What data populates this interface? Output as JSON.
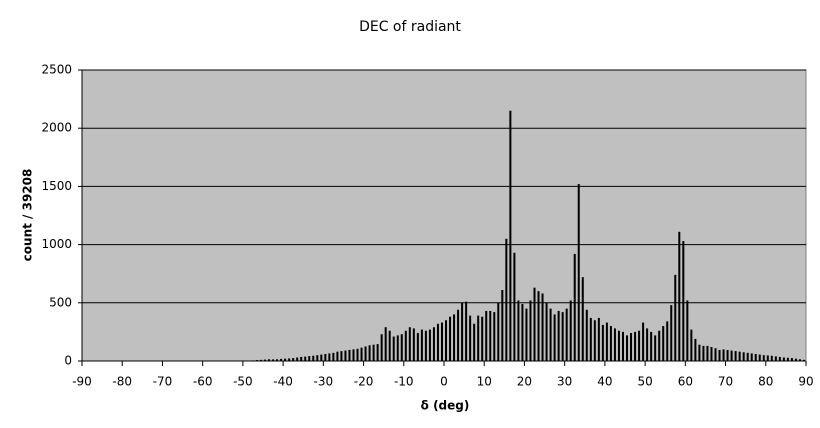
{
  "chart_data": {
    "type": "histogram",
    "title": "DEC of radiant",
    "xlabel": "δ (deg)",
    "ylabel": "count / 39208",
    "bins": [
      -90,
      -89,
      -88,
      -87,
      -86,
      -85,
      -84,
      -83,
      -82,
      -81,
      -80,
      -79,
      -78,
      -77,
      -76,
      -75,
      -74,
      -73,
      -72,
      -71,
      -70,
      -69,
      -68,
      -67,
      -66,
      -65,
      -64,
      -63,
      -62,
      -61,
      -60,
      -59,
      -58,
      -57,
      -56,
      -55,
      -54,
      -53,
      -52,
      -51,
      -50,
      -49,
      -48,
      -47,
      -46,
      -45,
      -44,
      -43,
      -42,
      -41,
      -40,
      -39,
      -38,
      -37,
      -36,
      -35,
      -34,
      -33,
      -32,
      -31,
      -30,
      -29,
      -28,
      -27,
      -26,
      -25,
      -24,
      -23,
      -22,
      -21,
      -20,
      -19,
      -18,
      -17,
      -16,
      -15,
      -14,
      -13,
      -12,
      -11,
      -10,
      -9,
      -8,
      -7,
      -6,
      -5,
      -4,
      -3,
      -2,
      -1,
      0,
      1,
      2,
      3,
      4,
      5,
      6,
      7,
      8,
      9,
      10,
      11,
      12,
      13,
      14,
      15,
      16,
      17,
      18,
      19,
      20,
      21,
      22,
      23,
      24,
      25,
      26,
      27,
      28,
      29,
      30,
      31,
      32,
      33,
      34,
      35,
      36,
      37,
      38,
      39,
      40,
      41,
      42,
      43,
      44,
      45,
      46,
      47,
      48,
      49,
      50,
      51,
      52,
      53,
      54,
      55,
      56,
      57,
      58,
      59,
      60,
      61,
      62,
      63,
      64,
      65,
      66,
      67,
      68,
      69,
      70,
      71,
      72,
      73,
      74,
      75,
      76,
      77,
      78,
      79,
      80,
      81,
      82,
      83,
      84,
      85,
      86,
      87,
      88,
      89,
      90
    ],
    "counts": [
      0,
      0,
      0,
      0,
      0,
      0,
      0,
      0,
      0,
      0,
      0,
      0,
      0,
      0,
      0,
      0,
      0,
      0,
      0,
      0,
      0,
      0,
      0,
      0,
      0,
      0,
      0,
      0,
      0,
      0,
      0,
      0,
      0,
      0,
      0,
      0,
      0,
      0,
      0,
      0,
      0,
      0,
      5,
      8,
      10,
      12,
      15,
      14,
      15,
      18,
      20,
      22,
      25,
      30,
      35,
      38,
      42,
      45,
      50,
      55,
      60,
      65,
      70,
      80,
      85,
      90,
      95,
      100,
      105,
      115,
      125,
      135,
      140,
      145,
      230,
      290,
      260,
      210,
      220,
      230,
      260,
      290,
      280,
      240,
      270,
      260,
      270,
      290,
      320,
      330,
      350,
      380,
      400,
      440,
      500,
      510,
      390,
      320,
      390,
      380,
      430,
      430,
      420,
      500,
      610,
      1050,
      2150,
      930,
      520,
      490,
      450,
      520,
      630,
      600,
      580,
      500,
      450,
      400,
      430,
      420,
      450,
      520,
      920,
      1520,
      720,
      440,
      370,
      350,
      370,
      310,
      330,
      300,
      280,
      260,
      250,
      220,
      240,
      250,
      260,
      330,
      280,
      250,
      220,
      260,
      300,
      340,
      480,
      740,
      1110,
      1030,
      520,
      270,
      190,
      140,
      130,
      130,
      120,
      110,
      95,
      100,
      95,
      90,
      85,
      80,
      75,
      70,
      65,
      60,
      55,
      50,
      48,
      45,
      40,
      35,
      30,
      28,
      25,
      20,
      15,
      10
    ],
    "color": "#000000",
    "background": "#c0c0c0",
    "xlim": [
      -90,
      90
    ],
    "xticks": [
      -90,
      -80,
      -70,
      -60,
      -50,
      -40,
      -30,
      -20,
      -10,
      0,
      10,
      20,
      30,
      40,
      50,
      60,
      70,
      80,
      90
    ],
    "ylim": [
      0,
      2500
    ],
    "yticks": [
      0,
      500,
      1000,
      1500,
      2000,
      2500
    ],
    "grid": true
  }
}
